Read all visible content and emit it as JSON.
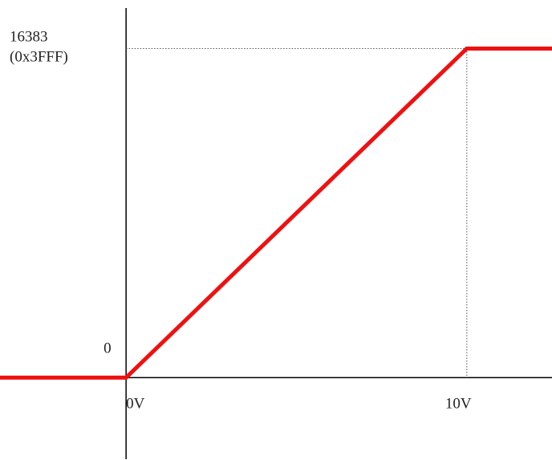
{
  "chart_data": {
    "type": "line",
    "x_ticks": [
      "0V",
      "10V"
    ],
    "y_labels": {
      "max_decimal": "16383",
      "max_hex": "(0x3FFF)",
      "zero": "0"
    },
    "series": [
      {
        "x": [
          -3.7,
          0,
          10,
          12.5
        ],
        "y": [
          0,
          0,
          16383,
          16383
        ]
      }
    ],
    "xlim": [
      -3.7,
      12.5
    ],
    "ylim": [
      -4100,
      18800
    ],
    "reference_lines": {
      "x": 10,
      "y": 16383,
      "style": "dotted"
    },
    "grid": false,
    "legend": "none",
    "colors": {
      "series": "#ee1111",
      "axis": "#000000",
      "reference": "#555555"
    }
  }
}
